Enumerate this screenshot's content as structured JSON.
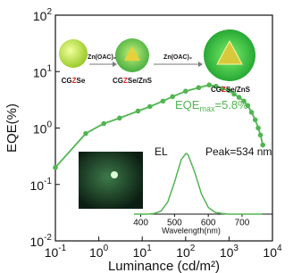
{
  "chart_data": [
    {
      "type": "line",
      "y_label": "EQE(%)",
      "x_label": "Luminance (cd/m²)",
      "log_x": true,
      "log_y": true,
      "markers": true,
      "xlim": [
        0.1,
        10000
      ],
      "ylim": [
        0.01,
        100
      ],
      "xticks": [
        {
          "value": 0.1,
          "label": "10",
          "exponent": "-1"
        },
        {
          "value": 1,
          "label": "10",
          "exponent": "0"
        },
        {
          "value": 10,
          "label": "10",
          "exponent": "1"
        },
        {
          "value": 100,
          "label": "10",
          "exponent": "2"
        },
        {
          "value": 1000,
          "label": "10",
          "exponent": "3"
        },
        {
          "value": 10000,
          "label": "10",
          "exponent": "4"
        }
      ],
      "yticks": [
        {
          "value": 0.01,
          "label": "10",
          "exponent": "-2"
        },
        {
          "value": 0.1,
          "label": "10",
          "exponent": "-1"
        },
        {
          "value": 1,
          "label": "10",
          "exponent": "0"
        },
        {
          "value": 10,
          "label": "10",
          "exponent": "1"
        },
        {
          "value": 100,
          "label": "10",
          "exponent": "2"
        }
      ],
      "series": [
        {
          "color": "#52b552",
          "x": [
            0.1,
            0.5,
            1.3,
            3,
            8,
            15,
            30,
            50,
            100,
            200,
            350,
            500,
            700,
            1000,
            1300,
            1700,
            2200,
            2700,
            3300,
            4000,
            4700,
            5300,
            6000
          ],
          "values": [
            0.2,
            0.8,
            1.2,
            1.5,
            2,
            2.4,
            3,
            3.6,
            4.5,
            5.2,
            5.8,
            5.5,
            5,
            4.6,
            4,
            3.5,
            3,
            2.5,
            1.9,
            1.4,
            1,
            0.75,
            0.5
          ]
        }
      ],
      "annotation": {
        "text": "EQE",
        "sub": "max",
        "rest": "=5.8%"
      },
      "schematic": [
        {
          "parts": [
            "CG",
            "Z",
            "Se"
          ]
        },
        {
          "parts": [
            "CG",
            "Z",
            "Se/ZnS"
          ]
        },
        {
          "parts": [
            "CG",
            "Z",
            "Se/ZnS"
          ]
        }
      ],
      "arrows": [
        "Zn(OAC)₂",
        "Zn(OAC)₂"
      ]
    },
    {
      "type": "line",
      "x_label": "Wavelength(nm)",
      "legend": "EL",
      "annotation": "Peak=534 nm",
      "xlim": [
        380,
        790
      ],
      "ylim": [
        0,
        1
      ],
      "xticks": [
        400,
        500,
        600,
        700
      ],
      "series": [
        {
          "color": "#52b552",
          "x": [
            380,
            400,
            420,
            440,
            460,
            480,
            500,
            520,
            534,
            540,
            560,
            580,
            600,
            620,
            640,
            660,
            680,
            700,
            720,
            740,
            760
          ],
          "values": [
            0,
            0,
            0,
            0.01,
            0.05,
            0.2,
            0.53,
            0.9,
            1,
            0.98,
            0.69,
            0.33,
            0.11,
            0.03,
            0.01,
            0,
            0,
            0,
            0,
            0,
            0
          ]
        }
      ]
    }
  ]
}
